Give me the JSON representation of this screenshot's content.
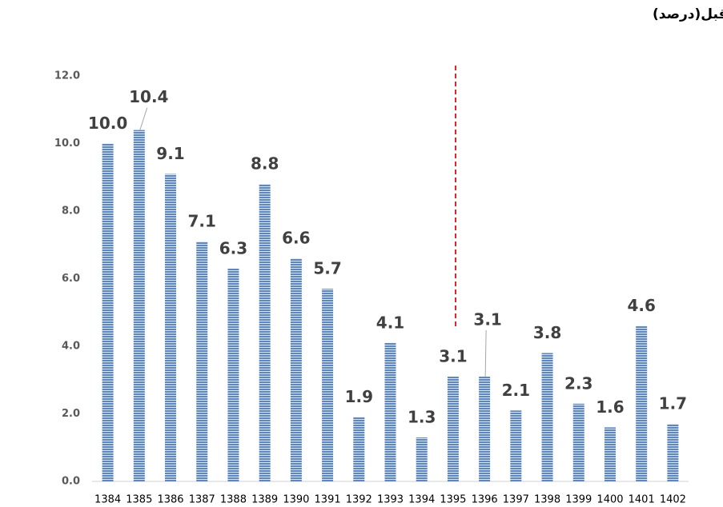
{
  "chart_data": {
    "type": "bar",
    "title": "نرخ رشد ظرفیت نامی نیروگاه ها نسبت به سال قبل(درصد)",
    "categories": [
      "1384",
      "1385",
      "1386",
      "1387",
      "1388",
      "1389",
      "1390",
      "1391",
      "1392",
      "1393",
      "1394",
      "1395",
      "1396",
      "1397",
      "1398",
      "1399",
      "1400",
      "1401",
      "1402"
    ],
    "values": [
      10.0,
      10.4,
      9.1,
      7.1,
      6.3,
      8.8,
      6.6,
      5.7,
      1.9,
      4.1,
      1.3,
      3.1,
      3.1,
      2.1,
      3.8,
      2.3,
      1.6,
      4.6,
      1.7
    ],
    "value_labels": [
      "10.0",
      "10.4",
      "9.1",
      "7.1",
      "6.3",
      "8.8",
      "6.6",
      "5.7",
      "1.9",
      "4.1",
      "1.3",
      "3.1",
      "3.1",
      "2.1",
      "3.8",
      "2.3",
      "1.6",
      "4.6",
      "1.7"
    ],
    "color": "#5b86c7",
    "ylim": [
      0,
      12
    ],
    "yticks": [
      {
        "value": 0,
        "label": "0.0"
      },
      {
        "value": 2,
        "label": "2.0"
      },
      {
        "value": 4,
        "label": "4.0"
      },
      {
        "value": 6,
        "label": "6.0"
      },
      {
        "value": 8,
        "label": "8.0"
      },
      {
        "value": 10,
        "label": "10.0"
      },
      {
        "value": 12,
        "label": "12.0"
      }
    ],
    "grid": false
  }
}
